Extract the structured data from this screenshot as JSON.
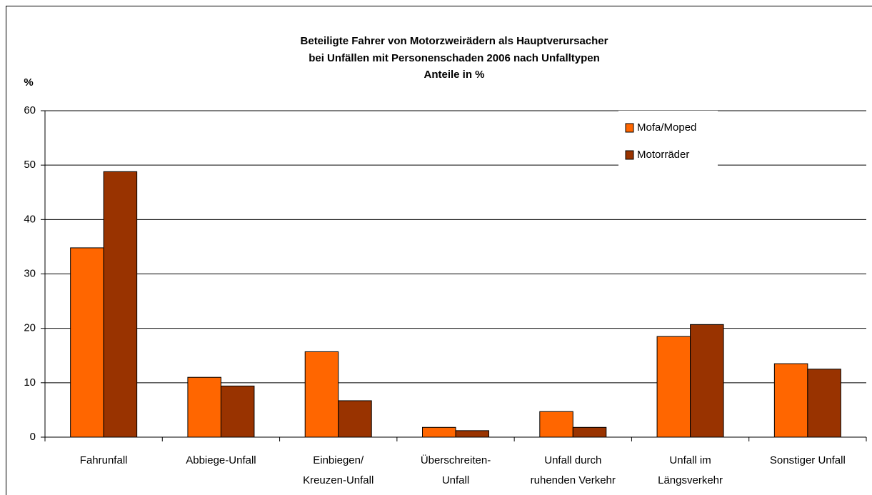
{
  "chart_data": {
    "type": "bar",
    "title": [
      "Beteiligte Fahrer von Motorzweirädern als Hauptverursacher",
      "bei Unfällen mit Personenschaden 2006 nach Unfalltypen",
      "Anteile in %"
    ],
    "y_label": "%",
    "categories": [
      [
        "Fahrunfall"
      ],
      [
        "Abbiege-Unfall"
      ],
      [
        "Einbiegen/",
        "Kreuzen-Unfall"
      ],
      [
        "Überschreiten-",
        "Unfall"
      ],
      [
        "Unfall durch",
        "ruhenden Verkehr"
      ],
      [
        "Unfall im",
        "Längsverkehr"
      ],
      [
        "Sonstiger Unfall"
      ]
    ],
    "series": [
      {
        "name": "Mofa/Moped",
        "color": "#ff6600",
        "values": [
          34.8,
          11.0,
          15.7,
          1.8,
          4.7,
          18.5,
          13.5
        ]
      },
      {
        "name": "Motorräder",
        "color": "#993300",
        "values": [
          48.8,
          9.4,
          6.7,
          1.2,
          1.8,
          20.7,
          12.5
        ]
      }
    ],
    "ylim": [
      0,
      60
    ],
    "yticks": [
      0,
      10,
      20,
      30,
      40,
      50,
      60
    ],
    "grid": true,
    "legend": "upper right"
  }
}
